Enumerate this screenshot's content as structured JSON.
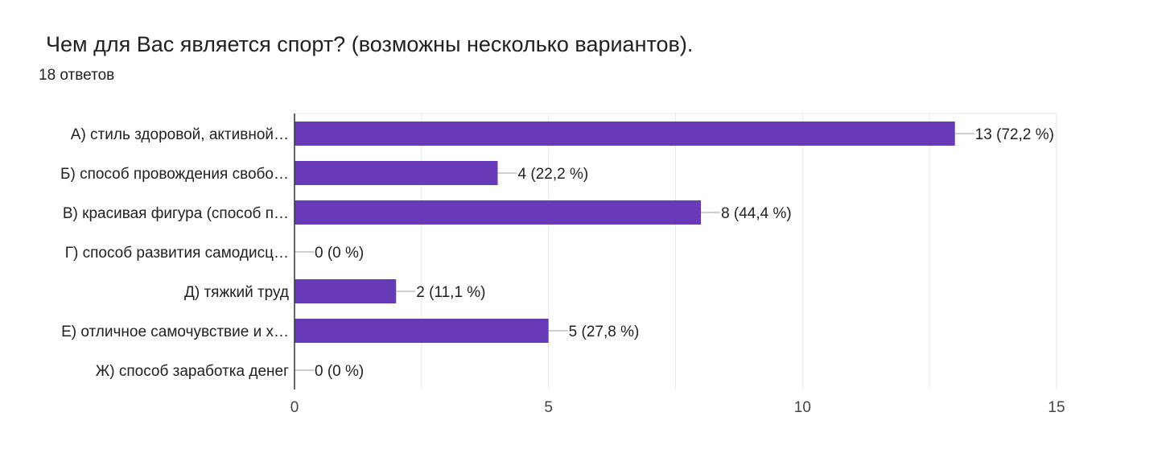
{
  "question": {
    "title": "Чем для Вас является спорт? (возможны несколько вариантов).",
    "responses": "18 ответов"
  },
  "colors": {
    "bar": "#673ab7",
    "grid": "#e8e8e8",
    "axis": "#333333",
    "text": "#212121"
  },
  "chart_data": {
    "type": "bar",
    "orientation": "horizontal",
    "title": "Чем для Вас является спорт? (возможны несколько вариантов).",
    "categories": [
      "А) стиль здоровой, активной…",
      "Б) способ провождения свобо…",
      "В) красивая фигура (способ п…",
      "Г) способ развития самодисц…",
      "Д) тяжкий труд",
      "Е) отличное самочувствие и х…",
      "Ж) способ заработка денег"
    ],
    "values": [
      13,
      4,
      8,
      0,
      2,
      5,
      0
    ],
    "value_labels": [
      "13 (72,2 %)",
      "4 (22,2 %)",
      "8 (44,4 %)",
      "0 (0 %)",
      "2 (11,1 %)",
      "5 (27,8 %)",
      "0 (0 %)"
    ],
    "xlim": [
      0,
      15
    ],
    "xticks": [
      0,
      5,
      10,
      15
    ],
    "xtick_labels": [
      "0",
      "5",
      "10",
      "15"
    ],
    "grid": true,
    "xlabel": "",
    "ylabel": ""
  }
}
